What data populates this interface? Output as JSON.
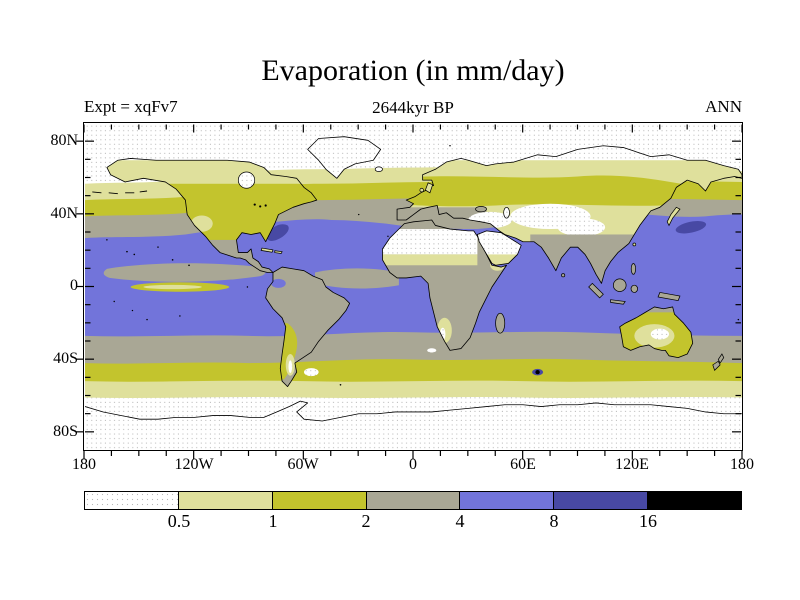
{
  "title": "Evaporation (in mm/day)",
  "subtitle": "2644kyr BP",
  "experiment_label": "Expt = xqFv7",
  "season_label": "ANN",
  "axes": {
    "y_ticks": [
      "80N",
      "40N",
      "0",
      "40S",
      "80S"
    ],
    "x_ticks": [
      "180",
      "120W",
      "60W",
      "0",
      "60E",
      "120E",
      "180"
    ]
  },
  "colorbar": {
    "labels": [
      "0.5",
      "1",
      "2",
      "4",
      "8",
      "16"
    ],
    "colors": [
      "#ffffff",
      "#dfe09c",
      "#c3c42d",
      "#a9a795",
      "#7274da",
      "#4849a4",
      "#000000"
    ]
  },
  "palette": {
    "lt_05": "#ffffff",
    "v05_1": "#dfe09c",
    "v1_2": "#c3c42d",
    "v2_4": "#a9a795",
    "v4_8": "#7274da",
    "v8_16": "#4849a4",
    "gt_16": "#000000",
    "coast": "#000000"
  },
  "chart_data": {
    "type": "heatmap",
    "subtype": "filled_contour_world_map",
    "variable": "Evaporation",
    "units": "mm/day",
    "title": "Evaporation (in mm/day)",
    "time_label": "2644kyr BP",
    "experiment": "xqFv7",
    "temporal_mean": "ANN",
    "projection": "equirectangular",
    "lon_range": [
      -180,
      180
    ],
    "lat_range": [
      -90,
      90
    ],
    "x_tick_labels": [
      "180",
      "120W",
      "60W",
      "0",
      "60E",
      "120E",
      "180"
    ],
    "y_tick_labels": [
      "80N",
      "40N",
      "0",
      "40S",
      "80S"
    ],
    "x_minor_tick_step_deg": 15,
    "y_minor_tick_step_deg": 10,
    "contour_levels_mm_day": [
      0.5,
      1,
      2,
      4,
      8,
      16
    ],
    "level_colors": [
      "#ffffff",
      "#dfe09c",
      "#c3c42d",
      "#a9a795",
      "#7274da",
      "#4849a4",
      "#000000"
    ],
    "legend_position": "bottom",
    "zonal_band_readings": [
      {
        "lat_band": "90N to 75N",
        "evaporation_mm_day": "< 0.5"
      },
      {
        "lat_band": "75N to 62N (N Pacific shifted ~8S)",
        "evaporation_mm_day": "0.5 - 1"
      },
      {
        "lat_band": "62N to 50N",
        "evaporation_mm_day": "1 - 2"
      },
      {
        "lat_band": "50N to 40N (Atlantic), 45N to 28N (Pacific)",
        "evaporation_mm_day": "2 - 4"
      },
      {
        "lat_band": "40N to 8N over oceans",
        "evaporation_mm_day": "4 - 8"
      },
      {
        "lat_band": "equatorial E Pacific and Atlantic ITCZ",
        "evaporation_mm_day": "2 - 4 with 1 - 2 cold-tongue"
      },
      {
        "lat_band": "5S to 25S over oceans",
        "evaporation_mm_day": "4 - 8"
      },
      {
        "lat_band": "25S to 40S",
        "evaporation_mm_day": "2 - 4"
      },
      {
        "lat_band": "40S to 52S",
        "evaporation_mm_day": "1 - 2"
      },
      {
        "lat_band": "52S to 62S",
        "evaporation_mm_day": "0.5 - 1"
      },
      {
        "lat_band": "62S to 90S",
        "evaporation_mm_day": "< 0.5"
      }
    ],
    "regional_features": [
      {
        "region": "Sahara, Arabia, central Asia / Tibet deserts",
        "evaporation_mm_day": "< 0.5"
      },
      {
        "region": "Greenland, Arctic Ocean, Antarctica",
        "evaporation_mm_day": "< 0.5"
      },
      {
        "region": "Gulf Stream off US east coast",
        "evaporation_mm_day": "8 - 16"
      },
      {
        "region": "Kuroshio east of Japan",
        "evaporation_mm_day": "8 - 16"
      },
      {
        "region": "small spot S Indian Ocean ~47S 68E",
        "evaporation_mm_day": "> 16"
      },
      {
        "region": "Amazon basin, India, SE Asia, equatorial/southern Africa",
        "evaporation_mm_day": "2 - 4"
      },
      {
        "region": "Australia",
        "evaporation_mm_day": "1 - 2 with < 0.5 interior core"
      },
      {
        "region": "North America mid-latitudes",
        "evaporation_mm_day": "1 - 2"
      }
    ]
  }
}
